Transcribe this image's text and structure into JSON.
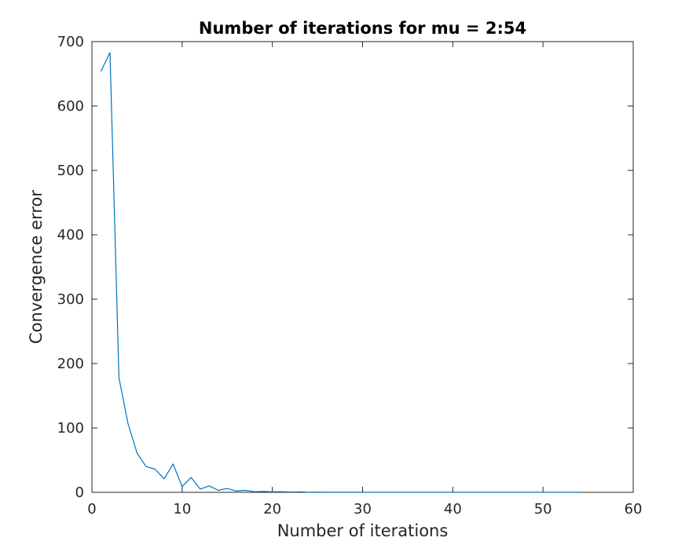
{
  "chart_data": {
    "type": "line",
    "title": "Number of iterations for mu = 2:54",
    "xlabel": "Number of iterations",
    "ylabel": "Convergence error",
    "xlim": [
      0,
      60
    ],
    "ylim": [
      0,
      700
    ],
    "xticks": [
      0,
      10,
      20,
      30,
      40,
      50,
      60
    ],
    "yticks": [
      0,
      100,
      200,
      300,
      400,
      500,
      600,
      700
    ],
    "xtick_labels": [
      "0",
      "10",
      "20",
      "30",
      "40",
      "50",
      "60"
    ],
    "ytick_labels": [
      "0",
      "100",
      "200",
      "300",
      "400",
      "500",
      "600",
      "700"
    ],
    "grid": false,
    "line_color": "#0072bd",
    "axis_color": "#262626",
    "series": [
      {
        "x": [
          1,
          2,
          3,
          4,
          5,
          6,
          7,
          8,
          9,
          10,
          11,
          12,
          13,
          14,
          15,
          16,
          17,
          18,
          19,
          20,
          21,
          22,
          23,
          24,
          25,
          26,
          27,
          28,
          29,
          30,
          31,
          32,
          33,
          34,
          35,
          36,
          37,
          38,
          39,
          40,
          41,
          42,
          43,
          44,
          45,
          46,
          47,
          48,
          49,
          50,
          51,
          52,
          53,
          54
        ],
        "values": [
          654,
          683,
          178,
          107,
          61,
          40,
          36,
          21,
          44,
          9,
          23,
          5,
          10,
          3,
          6,
          2,
          3,
          1,
          1.5,
          0.8,
          1,
          0.5,
          0.8,
          0.3,
          0.4,
          0.2,
          0.3,
          0.2,
          0.2,
          0.1,
          0.1,
          0.1,
          0.1,
          0.1,
          0.1,
          0.1,
          0.1,
          0.1,
          0.1,
          0.1,
          0.1,
          0.1,
          0.1,
          0.1,
          0.1,
          0.1,
          0.1,
          0.1,
          0.1,
          0.1,
          0.1,
          0.1,
          0.1,
          0.1
        ]
      }
    ]
  }
}
